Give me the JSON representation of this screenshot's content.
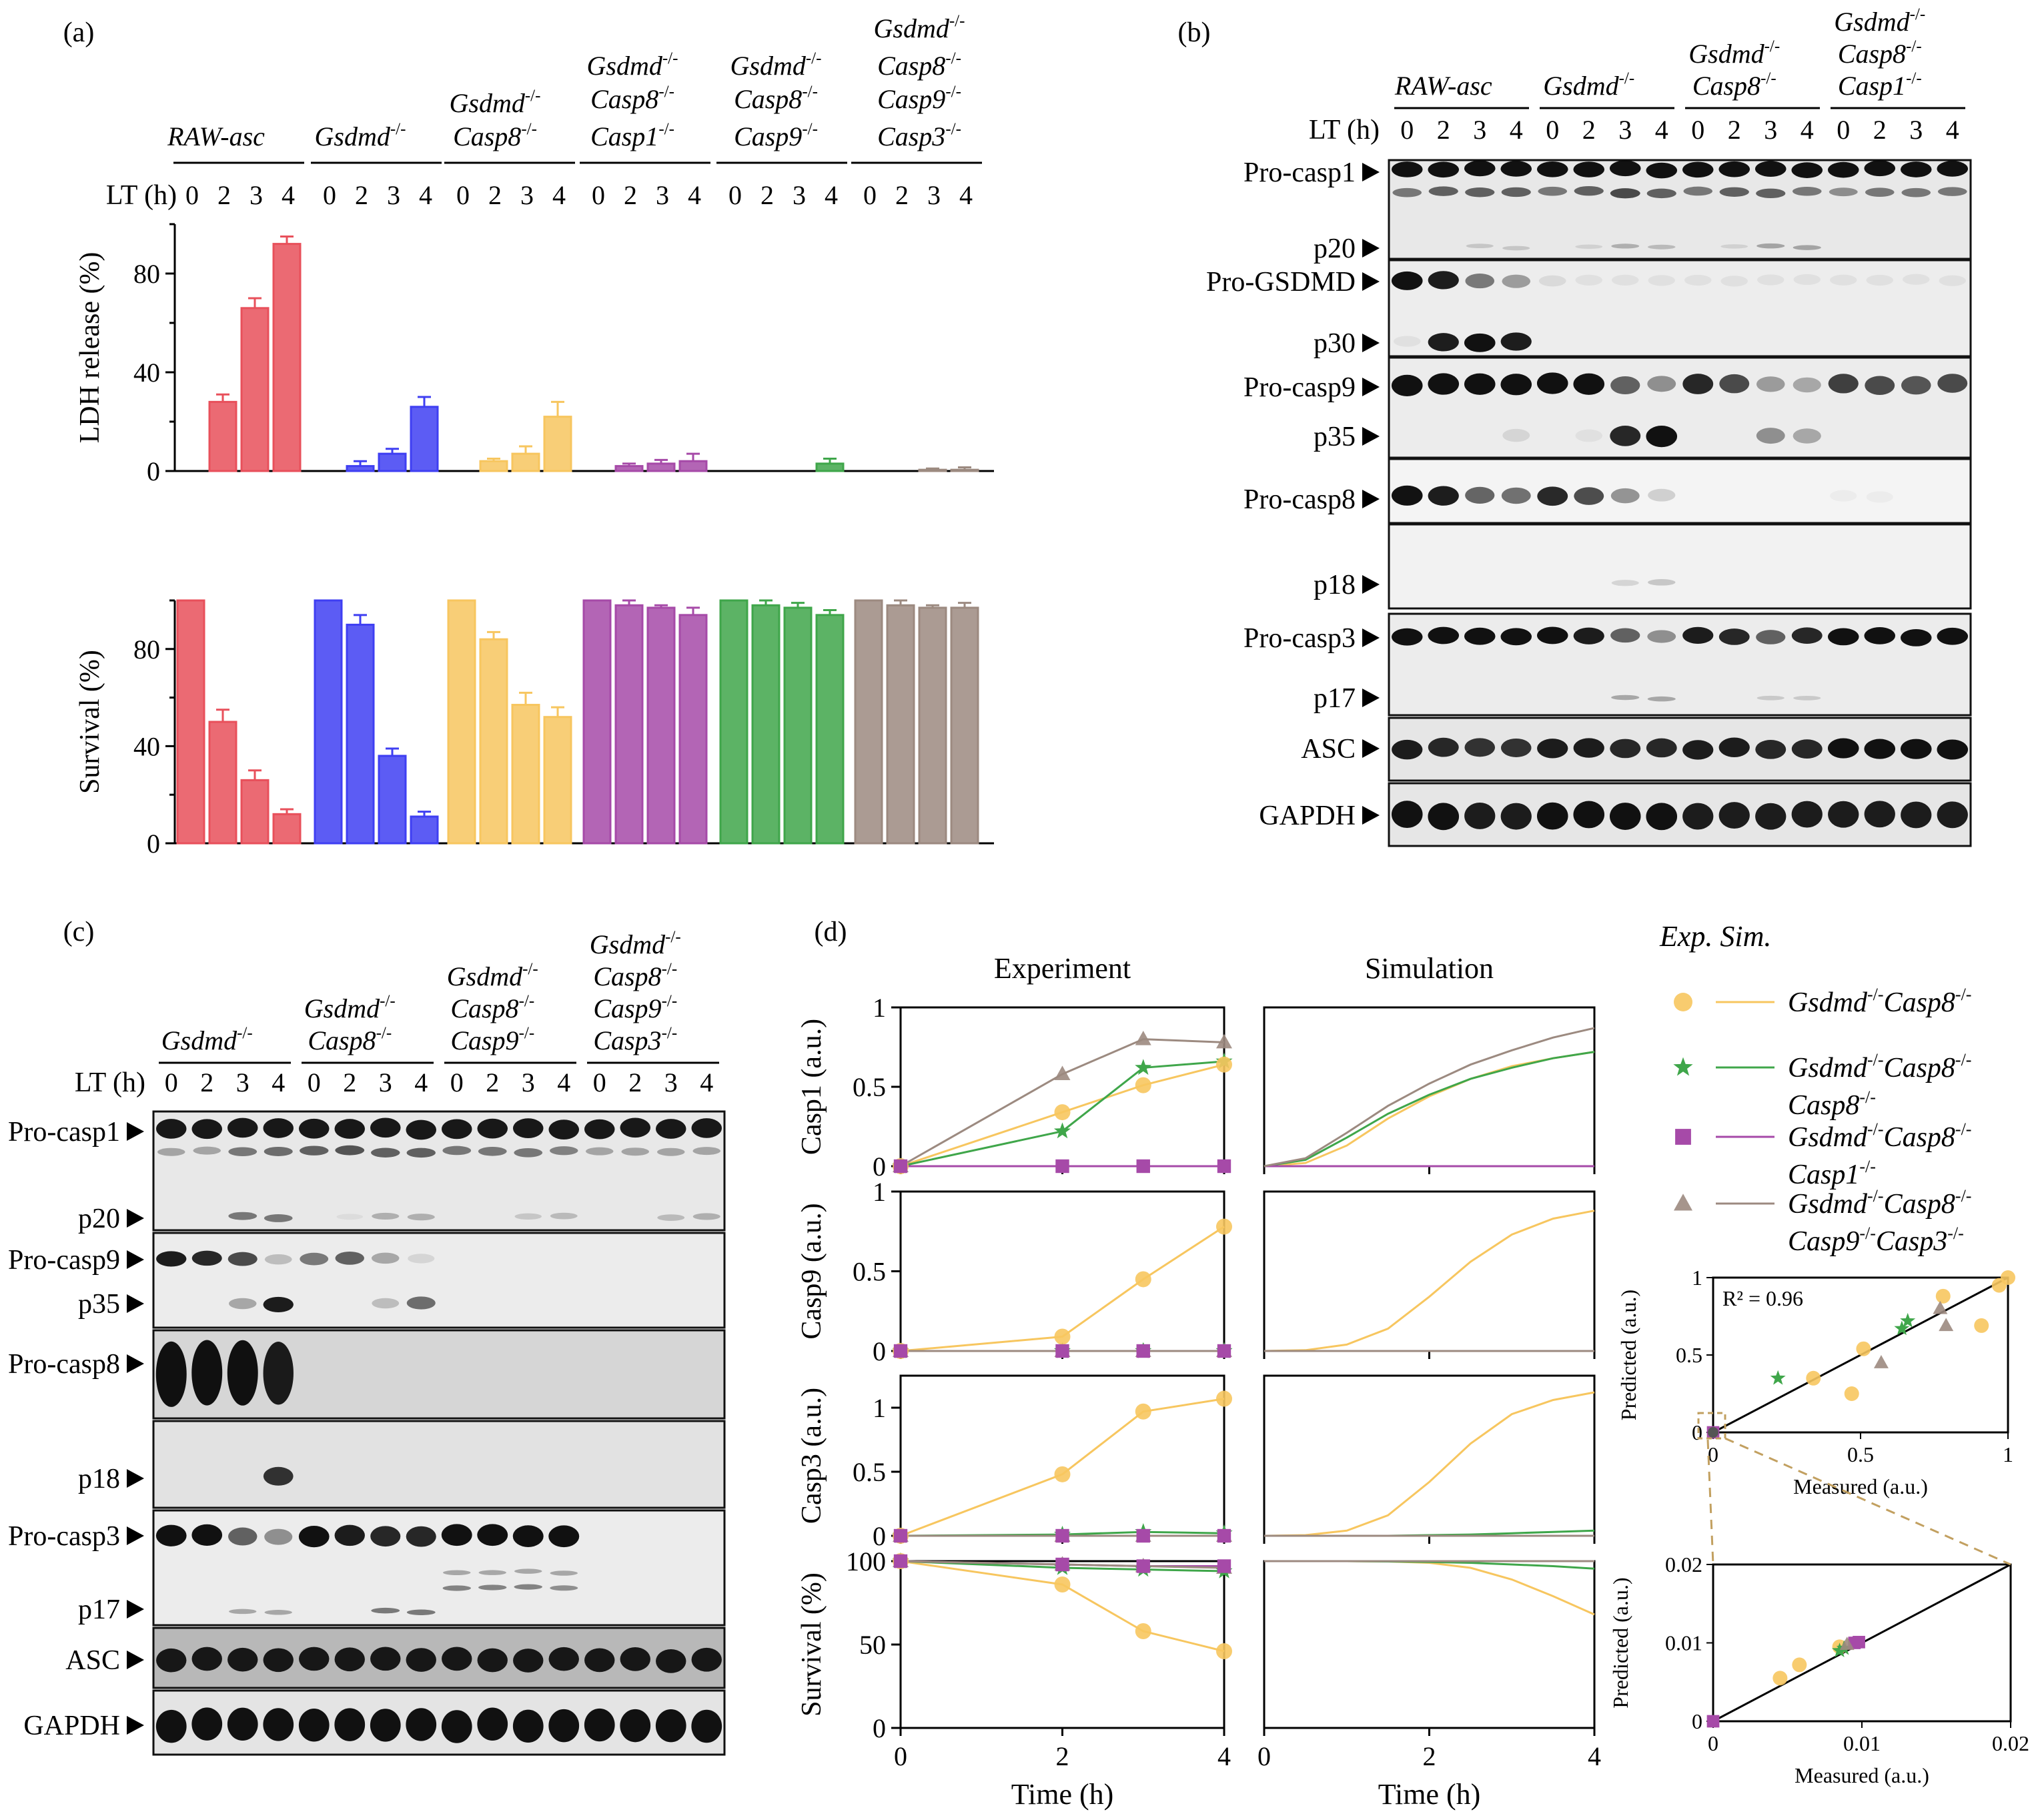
{
  "colors": {
    "raw": "#e8505b",
    "gsdmd": "#3f3ff2",
    "g8": "#f7c65f",
    "g81": "#a64aa8",
    "g89": "#3fa64a",
    "g893": "#9c8a80",
    "sim_green": "#3fa64a",
    "guide": "#c2a060"
  },
  "panels": {
    "a": "(a)",
    "b": "(b)",
    "c": "(c)",
    "d": "(d)"
  },
  "common": {
    "lt_label": "LT (h)",
    "times": [
      "0",
      "2",
      "3",
      "4"
    ],
    "minus": "-/-"
  },
  "genotypes": {
    "raw": [
      "RAW-asc"
    ],
    "gsdmd": [
      "Gsdmd"
    ],
    "g8": [
      "Gsdmd",
      "Casp8"
    ],
    "g81": [
      "Gsdmd",
      "Casp8",
      "Casp1"
    ],
    "g89": [
      "Gsdmd",
      "Casp8",
      "Casp9"
    ],
    "g893": [
      "Gsdmd",
      "Casp8",
      "Casp9",
      "Casp3"
    ]
  },
  "chart_data": [
    {
      "id": "a_ldh",
      "type": "bar",
      "ylabel": "LDH release (%)",
      "ylim": [
        0,
        100
      ],
      "yticks": [
        "0",
        "40",
        "80"
      ],
      "categories": [
        "0",
        "2",
        "3",
        "4"
      ],
      "series": [
        {
          "name": "RAW-asc",
          "values": [
            0,
            28,
            66,
            92
          ],
          "errors": [
            0,
            3,
            4,
            3
          ]
        },
        {
          "name": "Gsdmd-/-",
          "values": [
            0,
            2,
            7,
            26
          ],
          "errors": [
            0,
            2,
            2,
            4
          ]
        },
        {
          "name": "Gsdmd-/-Casp8-/-",
          "values": [
            0,
            4,
            7,
            22
          ],
          "errors": [
            0,
            1,
            3,
            6
          ]
        },
        {
          "name": "Gsdmd-/-Casp8-/-Casp1-/-",
          "values": [
            0,
            2,
            3,
            4
          ],
          "errors": [
            0,
            1,
            1.5,
            3
          ]
        },
        {
          "name": "Gsdmd-/-Casp8-/-Casp9-/-",
          "values": [
            0,
            0,
            0,
            3
          ],
          "errors": [
            0,
            0,
            0,
            2
          ]
        },
        {
          "name": "Gsdmd-/-Casp8-/-Casp9-/-Casp3-/-",
          "values": [
            0,
            0,
            0.5,
            0.5
          ],
          "errors": [
            0,
            0,
            0.5,
            1
          ]
        }
      ]
    },
    {
      "id": "a_survival",
      "type": "bar",
      "ylabel": "Survival (%)",
      "ylim": [
        0,
        100
      ],
      "yticks": [
        "0",
        "40",
        "80"
      ],
      "categories": [
        "0",
        "2",
        "3",
        "4"
      ],
      "series": [
        {
          "name": "RAW-asc",
          "values": [
            100,
            50,
            26,
            12
          ],
          "errors": [
            0,
            5,
            4,
            2
          ]
        },
        {
          "name": "Gsdmd-/-",
          "values": [
            100,
            90,
            36,
            11
          ],
          "errors": [
            0,
            4,
            3,
            2
          ]
        },
        {
          "name": "Gsdmd-/-Casp8-/-",
          "values": [
            100,
            84,
            57,
            52
          ],
          "errors": [
            0,
            3,
            5,
            4
          ]
        },
        {
          "name": "Gsdmd-/-Casp8-/-Casp1-/-",
          "values": [
            100,
            98,
            97,
            94
          ],
          "errors": [
            0,
            2,
            1,
            3
          ]
        },
        {
          "name": "Gsdmd-/-Casp8-/-Casp9-/-",
          "values": [
            100,
            98,
            97,
            94
          ],
          "errors": [
            0,
            2,
            2,
            2
          ]
        },
        {
          "name": "Gsdmd-/-Casp8-/-Casp9-/-Casp3-/-",
          "values": [
            100,
            98,
            97,
            97
          ],
          "errors": [
            0,
            2,
            1,
            2
          ]
        }
      ]
    },
    {
      "id": "d_casp1_exp",
      "type": "line",
      "title": "Experiment",
      "ylabel": "Casp1 (a.u.)",
      "xlim": [
        0,
        4
      ],
      "ylim": [
        0,
        1
      ],
      "yticks": [
        "0",
        "0.5",
        "1"
      ],
      "x": [
        0,
        2,
        3,
        4
      ],
      "series": [
        {
          "name": "Gsdmd-/-Casp8-/-",
          "values": [
            0,
            0.34,
            0.51,
            0.64
          ]
        },
        {
          "name": "Gsdmd-/-Casp8-/-Casp8-/-",
          "values": [
            0,
            0.22,
            0.62,
            0.66
          ]
        },
        {
          "name": "Gsdmd-/-Casp8-/-Casp1-/-",
          "values": [
            0,
            0,
            0,
            0
          ]
        },
        {
          "name": "Gsdmd-/-Casp8-/-Casp9-/-Casp3-/-",
          "values": [
            0,
            0.58,
            0.8,
            0.78
          ]
        }
      ]
    },
    {
      "id": "d_casp9_exp",
      "type": "line",
      "ylabel": "Casp9 (a.u.)",
      "xlim": [
        0,
        4
      ],
      "ylim": [
        0,
        1
      ],
      "yticks": [
        "0",
        "0.5",
        "1"
      ],
      "x": [
        0,
        2,
        3,
        4
      ],
      "series": [
        {
          "name": "Gsdmd-/-Casp8-/-",
          "values": [
            0,
            0.09,
            0.45,
            0.78
          ]
        },
        {
          "name": "Gsdmd-/-Casp8-/-Casp8-/-",
          "values": [
            0,
            0,
            0,
            0
          ]
        },
        {
          "name": "Gsdmd-/-Casp8-/-Casp1-/-",
          "values": [
            0,
            0,
            0,
            0
          ]
        },
        {
          "name": "Gsdmd-/-Casp8-/-Casp9-/-Casp3-/-",
          "values": [
            0,
            0,
            0,
            0
          ]
        }
      ]
    },
    {
      "id": "d_casp3_exp",
      "type": "line",
      "ylabel": "Casp3 (a.u.)",
      "xlim": [
        0,
        4
      ],
      "ylim": [
        0,
        1.25
      ],
      "yticks": [
        "0",
        "0.5",
        "1"
      ],
      "x": [
        0,
        2,
        3,
        4
      ],
      "series": [
        {
          "name": "Gsdmd-/-Casp8-/-",
          "values": [
            0,
            0.48,
            0.97,
            1.07
          ]
        },
        {
          "name": "Gsdmd-/-Casp8-/-Casp8-/-",
          "values": [
            0,
            0.01,
            0.03,
            0.02
          ]
        },
        {
          "name": "Gsdmd-/-Casp8-/-Casp1-/-",
          "values": [
            0,
            0,
            0,
            0
          ]
        },
        {
          "name": "Gsdmd-/-Casp8-/-Casp9-/-Casp3-/-",
          "values": [
            0,
            0,
            0,
            0
          ]
        }
      ]
    },
    {
      "id": "d_surv_exp",
      "type": "line",
      "ylabel": "Survival (%)",
      "xlabel": "Time (h)",
      "xlim": [
        0,
        4
      ],
      "ylim": [
        0,
        100
      ],
      "yticks": [
        "0",
        "50",
        "100"
      ],
      "xticks": [
        "0",
        "2",
        "4"
      ],
      "x": [
        0,
        2,
        3,
        4
      ],
      "series": [
        {
          "name": "Gsdmd-/-Casp8-/-",
          "values": [
            100,
            86,
            58,
            46
          ]
        },
        {
          "name": "Gsdmd-/-Casp8-/-Casp8-/-",
          "values": [
            100,
            96,
            95,
            94
          ]
        },
        {
          "name": "Gsdmd-/-Casp8-/-Casp1-/-",
          "values": [
            100,
            98,
            97,
            97
          ]
        },
        {
          "name": "Gsdmd-/-Casp8-/-Casp9-/-Casp3-/-",
          "values": [
            100,
            98,
            97,
            96
          ]
        }
      ]
    },
    {
      "id": "d_sim",
      "type": "line",
      "title": "Simulation",
      "xlabel": "Time (h)",
      "xlim": [
        0,
        4
      ],
      "xticks": [
        "0",
        "2",
        "4"
      ],
      "x": [
        0,
        0.5,
        1,
        1.5,
        2,
        2.5,
        3,
        3.5,
        4
      ],
      "panels": [
        {
          "id": "casp1",
          "ylim": [
            0,
            1
          ],
          "series": [
            {
              "name": "Gsdmd-/-Casp8-/-",
              "values": [
                0,
                0.02,
                0.13,
                0.3,
                0.44,
                0.55,
                0.63,
                0.68,
                0.72
              ]
            },
            {
              "name": "Gsdmd-/-Casp8-/-Casp8-/-",
              "values": [
                0,
                0.04,
                0.18,
                0.33,
                0.45,
                0.55,
                0.62,
                0.68,
                0.72
              ]
            },
            {
              "name": "Gsdmd-/-Casp8-/-Casp1-/-",
              "values": [
                0,
                0,
                0,
                0,
                0,
                0,
                0,
                0,
                0
              ]
            },
            {
              "name": "Gsdmd-/-Casp8-/-Casp9-/-Casp3-/-",
              "values": [
                0,
                0.05,
                0.21,
                0.38,
                0.52,
                0.64,
                0.73,
                0.81,
                0.87
              ]
            }
          ]
        },
        {
          "id": "casp9",
          "ylim": [
            0,
            1
          ],
          "series": [
            {
              "name": "Gsdmd-/-Casp8-/-",
              "values": [
                0,
                0.005,
                0.04,
                0.14,
                0.34,
                0.56,
                0.73,
                0.83,
                0.88
              ]
            },
            {
              "name": "Gsdmd-/-Casp8-/-Casp8-/-",
              "values": [
                0,
                0,
                0,
                0,
                0,
                0,
                0,
                0,
                0
              ]
            },
            {
              "name": "Gsdmd-/-Casp8-/-Casp1-/-",
              "values": [
                0,
                0,
                0,
                0,
                0,
                0,
                0,
                0,
                0
              ]
            },
            {
              "name": "Gsdmd-/-Casp8-/-Casp9-/-Casp3-/-",
              "values": [
                0,
                0,
                0,
                0,
                0,
                0,
                0,
                0,
                0
              ]
            }
          ]
        },
        {
          "id": "casp3",
          "ylim": [
            0,
            1.25
          ],
          "series": [
            {
              "name": "Gsdmd-/-Casp8-/-",
              "values": [
                0,
                0.005,
                0.04,
                0.16,
                0.42,
                0.72,
                0.95,
                1.06,
                1.12
              ]
            },
            {
              "name": "Gsdmd-/-Casp8-/-Casp8-/-",
              "values": [
                0,
                0,
                0,
                0,
                0.005,
                0.01,
                0.02,
                0.03,
                0.04
              ]
            },
            {
              "name": "Gsdmd-/-Casp8-/-Casp1-/-",
              "values": [
                0,
                0,
                0,
                0,
                0,
                0,
                0,
                0,
                0
              ]
            },
            {
              "name": "Gsdmd-/-Casp8-/-Casp9-/-Casp3-/-",
              "values": [
                0,
                0,
                0,
                0,
                0,
                0,
                0,
                0,
                0
              ]
            }
          ]
        },
        {
          "id": "survival",
          "ylim": [
            0,
            100
          ],
          "series": [
            {
              "name": "Gsdmd-/-Casp8-/-",
              "values": [
                100,
                100,
                100,
                99.8,
                99,
                96,
                89,
                79,
                68
              ]
            },
            {
              "name": "Gsdmd-/-Casp8-/-Casp8-/-",
              "values": [
                100,
                100,
                100,
                99.8,
                99.5,
                99,
                98,
                97,
                95.5
              ]
            },
            {
              "name": "Gsdmd-/-Casp8-/-Casp1-/-",
              "values": [
                100,
                100,
                100,
                100,
                100,
                100,
                100,
                100,
                100
              ]
            },
            {
              "name": "Gsdmd-/-Casp8-/-Casp9-/-Casp3-/-",
              "values": [
                100,
                100,
                100,
                100,
                100,
                100,
                100,
                100,
                100
              ]
            }
          ]
        }
      ]
    },
    {
      "id": "d_scatter",
      "type": "scatter",
      "xlabel": "Measured (a.u.)",
      "ylabel": "Predicted (a.u.)",
      "annotation": "R² = 0.96",
      "xlim": [
        0,
        1
      ],
      "ylim": [
        0,
        1
      ],
      "xticks": [
        "0",
        "0.5",
        "1"
      ],
      "yticks": [
        "0",
        "0.5",
        "1"
      ],
      "series": [
        {
          "name": "Gsdmd-/-Casp8-/-",
          "points": [
            [
              0.34,
              0.35
            ],
            [
              0.51,
              0.54
            ],
            [
              0.47,
              0.25
            ],
            [
              0.91,
              0.69
            ],
            [
              0.78,
              0.88
            ],
            [
              0.97,
              0.95
            ],
            [
              1.0,
              1.0
            ]
          ]
        },
        {
          "name": "Gsdmd-/-Casp8-/-Casp8-/-",
          "points": [
            [
              0.22,
              0.35
            ],
            [
              0.64,
              0.67
            ],
            [
              0.66,
              0.72
            ]
          ]
        },
        {
          "name": "Gsdmd-/-Casp8-/-Casp1-/-",
          "points": [
            [
              0.0,
              0.0
            ]
          ]
        },
        {
          "name": "Gsdmd-/-Casp8-/-Casp9-/-Casp3-/-",
          "points": [
            [
              0.57,
              0.45
            ],
            [
              0.79,
              0.69
            ],
            [
              0.77,
              0.8
            ]
          ]
        }
      ]
    },
    {
      "id": "d_scatter_zoom",
      "type": "scatter",
      "xlabel": "Measured (a.u.)",
      "ylabel": "Predicted (a.u.)",
      "xlim": [
        0,
        0.02
      ],
      "ylim": [
        0,
        0.02
      ],
      "xticks": [
        "0",
        "0.01",
        "0.02"
      ],
      "yticks": [
        "0",
        "0.01",
        "0.02"
      ],
      "series": [
        {
          "name": "Gsdmd-/-Casp8-/-",
          "points": [
            [
              0.0045,
              0.0055
            ],
            [
              0.0058,
              0.0072
            ],
            [
              0.0085,
              0.0095
            ]
          ]
        },
        {
          "name": "Gsdmd-/-Casp8-/-Casp8-/-",
          "points": [
            [
              0.0085,
              0.009
            ],
            [
              0.0088,
              0.0093
            ]
          ]
        },
        {
          "name": "Gsdmd-/-Casp8-/-Casp1-/-",
          "points": [
            [
              0.0,
              0.0
            ],
            [
              0.0095,
              0.01
            ],
            [
              0.0098,
              0.0101
            ]
          ]
        },
        {
          "name": "Gsdmd-/-Casp8-/-Casp9-/-Casp3-/-",
          "points": [
            [
              0.009,
              0.0098
            ]
          ]
        }
      ]
    }
  ],
  "blot_b": {
    "groups": [
      [
        "RAW-asc"
      ],
      [
        "Gsdmd"
      ],
      [
        "Gsdmd",
        "Casp8"
      ],
      [
        "Gsdmd",
        "Casp8",
        "Casp1"
      ]
    ],
    "strips": [
      {
        "labels": [
          "Pro-casp1",
          "p20"
        ]
      },
      {
        "labels": [
          "Pro-GSDMD",
          "p30"
        ]
      },
      {
        "labels": [
          "Pro-casp9",
          "p35"
        ]
      },
      {
        "labels": [
          "Pro-casp8"
        ]
      },
      {
        "labels": [
          "p18"
        ]
      },
      {
        "labels": [
          "Pro-casp3",
          "p17"
        ]
      },
      {
        "labels": [
          "ASC"
        ]
      },
      {
        "labels": [
          "GAPDH"
        ]
      }
    ]
  },
  "blot_c": {
    "groups": [
      [
        "Gsdmd"
      ],
      [
        "Gsdmd",
        "Casp8"
      ],
      [
        "Gsdmd",
        "Casp8",
        "Casp9"
      ],
      [
        "Gsdmd",
        "Casp8",
        "Casp9",
        "Casp3"
      ]
    ],
    "strips": [
      {
        "labels": [
          "Pro-casp1",
          "p20"
        ]
      },
      {
        "labels": [
          "Pro-casp9",
          "p35"
        ]
      },
      {
        "labels": [
          "Pro-casp8"
        ]
      },
      {
        "labels": [
          "p18"
        ]
      },
      {
        "labels": [
          "Pro-casp3",
          "p17"
        ]
      },
      {
        "labels": [
          "ASC"
        ]
      },
      {
        "labels": [
          "GAPDH"
        ]
      }
    ]
  },
  "legend_d": {
    "header": "Exp. Sim.",
    "entries": [
      {
        "key": "g8",
        "lines": [
          "Gsdmd-/-Casp8-/-"
        ]
      },
      {
        "key": "g89",
        "lines": [
          "Gsdmd-/-Casp8-/-",
          "Casp8-/-"
        ]
      },
      {
        "key": "g81",
        "lines": [
          "Gsdmd-/-Casp8-/-",
          "Casp1-/-"
        ]
      },
      {
        "key": "g893",
        "lines": [
          "Gsdmd-/-Casp8-/-",
          "Casp9-/-Casp3-/-"
        ]
      }
    ]
  }
}
